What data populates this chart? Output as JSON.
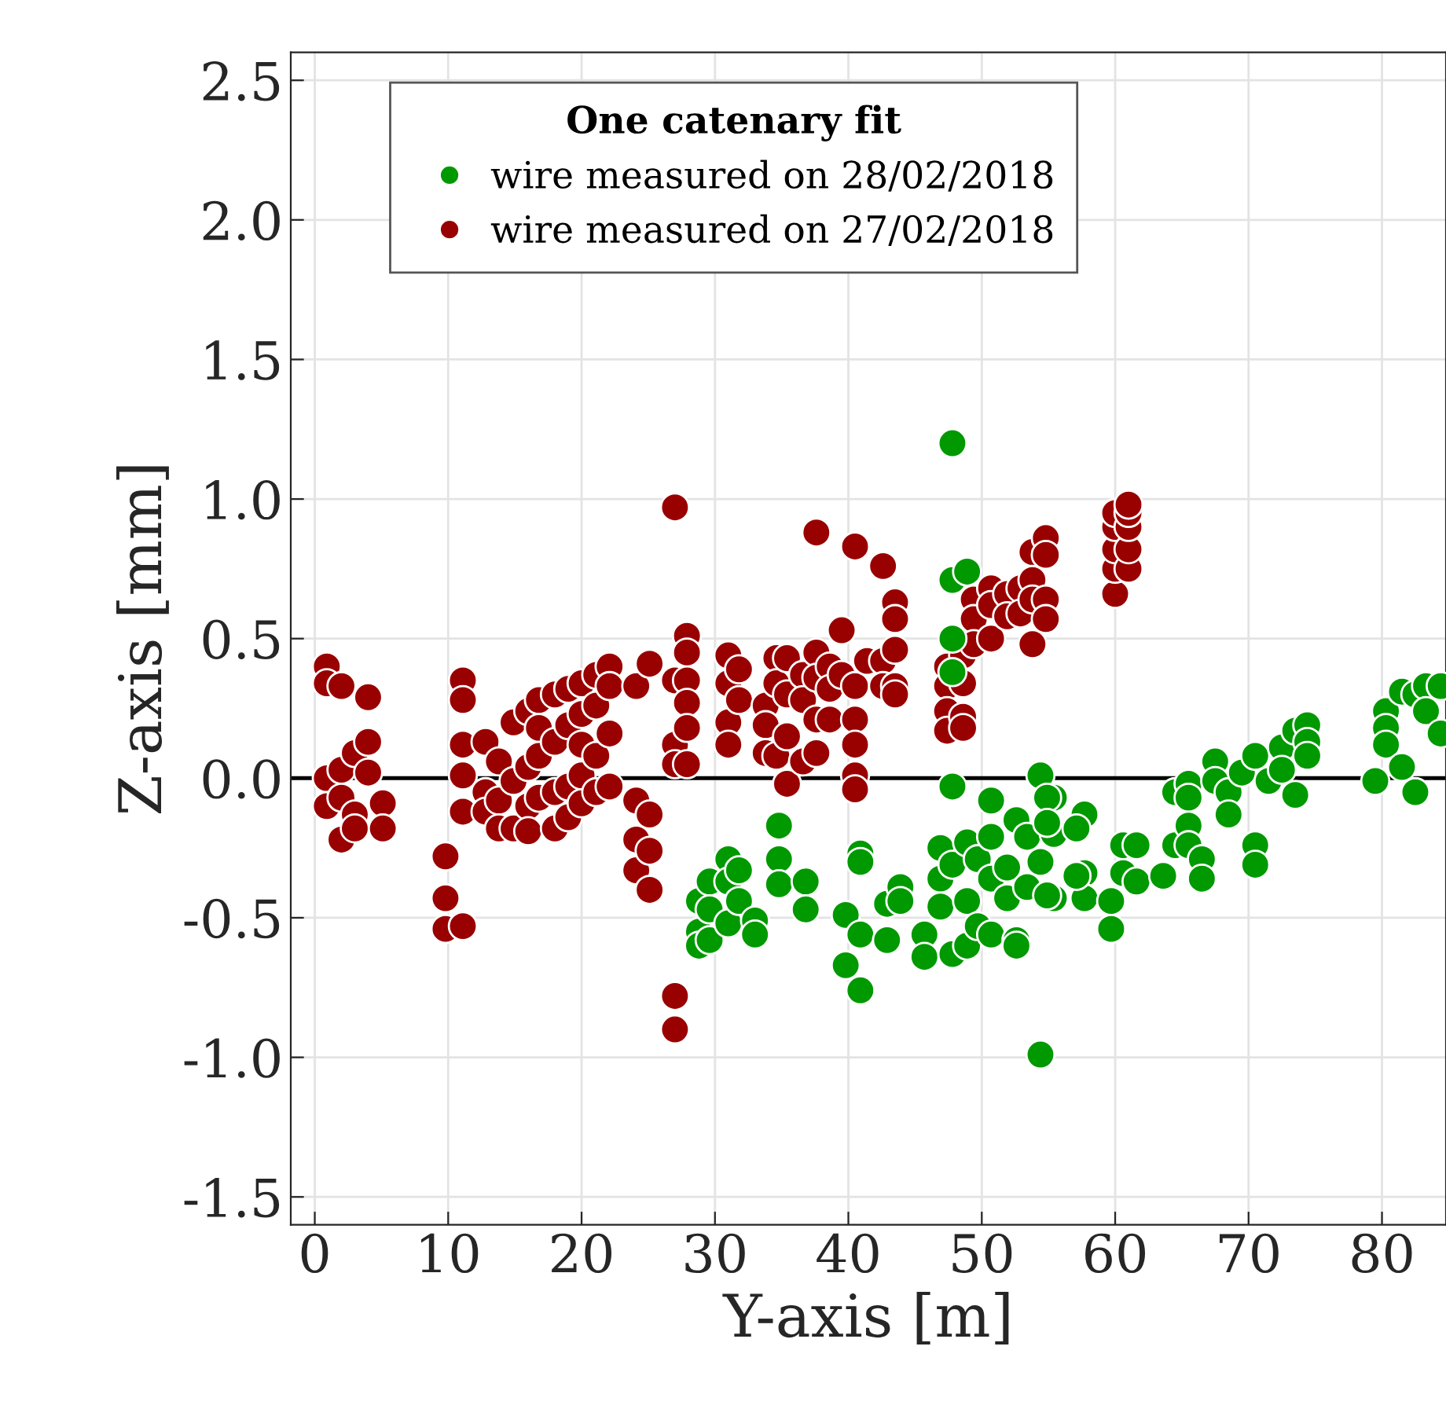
{
  "chart_data": {
    "type": "scatter",
    "xlabel": "Y-axis [m]",
    "ylabel": "Z-axis [mm]",
    "legend_title": "One catenary fit",
    "xlim": [
      -1.8,
      84.8
    ],
    "xticks": [
      0,
      10,
      20,
      30,
      40,
      50,
      60,
      70,
      80
    ],
    "ylim": [
      -1.6,
      2.6
    ],
    "yticks": [
      {
        "value": -1.5,
        "label": "-1.5"
      },
      {
        "value": -1.0,
        "label": "-1.0"
      },
      {
        "value": -0.5,
        "label": "-0.5"
      },
      {
        "value": 0.0,
        "label": "0.0"
      },
      {
        "value": 0.5,
        "label": "0.5"
      },
      {
        "value": 1.0,
        "label": "1.0"
      },
      {
        "value": 1.5,
        "label": "1.5"
      },
      {
        "value": 2.0,
        "label": "2.0"
      },
      {
        "value": 2.5,
        "label": "2.5"
      }
    ],
    "grid": true,
    "legend": "top left",
    "marker": "circle",
    "ref_lines": [
      {
        "axis": "y",
        "value": 0,
        "color": "#000000"
      }
    ],
    "series": [
      {
        "name": "wire measured on 28/02/2018",
        "color": "#009900",
        "x": [
          28.8,
          28.8,
          28.8,
          29.6,
          29.6,
          29.6,
          31.0,
          31.0,
          31.0,
          31.8,
          31.8,
          33.0,
          33.0,
          34.8,
          34.8,
          34.8,
          36.8,
          36.8,
          39.8,
          39.8,
          40.9,
          40.9,
          40.9,
          40.9,
          42.9,
          42.9,
          43.9,
          43.9,
          45.7,
          45.7,
          46.9,
          46.9,
          46.9,
          47.8,
          47.8,
          47.8,
          47.8,
          47.8,
          47.8,
          47.8,
          48.9,
          48.9,
          48.9,
          48.9,
          49.7,
          49.7,
          50.7,
          50.7,
          50.7,
          50.7,
          51.9,
          51.9,
          52.6,
          52.6,
          52.6,
          53.4,
          53.4,
          54.4,
          54.4,
          54.4,
          55.4,
          55.4,
          55.4,
          54.9,
          54.9,
          54.9,
          57.7,
          57.7,
          57.7,
          57.1,
          57.1,
          59.7,
          59.7,
          60.6,
          60.6,
          61.6,
          61.6,
          63.6,
          64.5,
          64.5,
          65.5,
          65.5,
          65.5,
          65.5,
          66.5,
          66.5,
          67.5,
          67.5,
          68.5,
          68.5,
          69.5,
          70.5,
          70.5,
          70.5,
          71.5,
          72.5,
          72.5,
          73.5,
          73.5,
          74.4,
          74.4,
          74.4,
          79.5,
          80.3,
          80.3,
          80.3,
          81.5,
          81.5,
          82.5,
          82.5,
          83.3,
          83.3,
          84.4,
          84.4
        ],
        "values": [
          -0.44,
          -0.55,
          -0.6,
          -0.37,
          -0.47,
          -0.58,
          -0.29,
          -0.37,
          -0.52,
          -0.33,
          -0.44,
          -0.51,
          -0.56,
          -0.17,
          -0.29,
          -0.38,
          -0.37,
          -0.47,
          -0.49,
          -0.67,
          -0.27,
          -0.3,
          -0.56,
          -0.76,
          -0.45,
          -0.58,
          -0.39,
          -0.44,
          -0.56,
          -0.64,
          -0.25,
          -0.36,
          -0.46,
          1.2,
          0.71,
          0.5,
          0.38,
          -0.03,
          -0.31,
          -0.63,
          0.74,
          -0.23,
          -0.44,
          -0.6,
          -0.29,
          -0.53,
          -0.08,
          -0.21,
          -0.36,
          -0.56,
          -0.32,
          -0.43,
          -0.15,
          -0.58,
          -0.6,
          -0.21,
          -0.39,
          0.01,
          -0.99,
          -0.3,
          -0.07,
          -0.2,
          -0.43,
          -0.07,
          -0.16,
          -0.42,
          -0.13,
          -0.34,
          -0.43,
          -0.18,
          -0.35,
          -0.44,
          -0.54,
          -0.24,
          -0.34,
          -0.24,
          -0.37,
          -0.35,
          -0.05,
          -0.24,
          -0.02,
          -0.07,
          -0.17,
          -0.24,
          -0.29,
          -0.36,
          0.06,
          -0.01,
          -0.05,
          -0.13,
          0.02,
          0.08,
          -0.24,
          -0.31,
          -0.01,
          0.11,
          0.03,
          0.17,
          -0.06,
          0.19,
          0.13,
          0.08,
          -0.01,
          0.24,
          0.18,
          0.12,
          0.31,
          0.04,
          0.3,
          -0.05,
          0.33,
          0.24,
          0.33,
          0.16
        ]
      },
      {
        "name": "wire measured on 27/02/2018",
        "color": "#990000",
        "x": [
          0.9,
          0.9,
          0.9,
          0.9,
          2.0,
          2.0,
          2.0,
          2.0,
          3.0,
          3.0,
          3.0,
          4.0,
          4.0,
          4.0,
          5.1,
          5.1,
          9.8,
          9.8,
          9.8,
          11.1,
          11.1,
          11.1,
          11.1,
          11.1,
          11.1,
          12.8,
          12.8,
          12.8,
          13.8,
          13.8,
          13.8,
          14.9,
          14.9,
          14.9,
          16.0,
          16.0,
          16.0,
          16.0,
          16.8,
          16.8,
          16.8,
          16.8,
          18.0,
          18.0,
          18.0,
          18.0,
          19.0,
          19.0,
          19.0,
          19.0,
          20.0,
          20.0,
          20.0,
          20.0,
          20.0,
          21.1,
          21.1,
          21.1,
          21.1,
          22.1,
          22.1,
          22.1,
          22.1,
          24.1,
          24.1,
          24.1,
          24.1,
          25.1,
          25.1,
          25.1,
          25.1,
          27.0,
          27.0,
          27.0,
          27.0,
          27.0,
          27.0,
          27.9,
          27.9,
          27.9,
          27.9,
          27.9,
          27.9,
          31.0,
          31.0,
          31.0,
          31.0,
          31.8,
          31.8,
          33.8,
          33.8,
          33.8,
          34.6,
          34.6,
          34.6,
          35.4,
          35.4,
          35.4,
          35.4,
          36.6,
          36.6,
          36.6,
          37.6,
          37.6,
          37.6,
          37.6,
          37.6,
          38.6,
          38.6,
          38.6,
          39.5,
          39.5,
          40.5,
          40.5,
          40.5,
          40.5,
          40.5,
          40.5,
          41.4,
          42.6,
          42.6,
          42.6,
          43.5,
          43.5,
          43.5,
          43.5,
          43.5,
          47.4,
          47.4,
          47.4,
          47.4,
          48.6,
          48.6,
          48.6,
          48.6,
          49.4,
          49.4,
          49.4,
          50.7,
          50.7,
          50.7,
          51.9,
          51.9,
          52.9,
          52.9,
          53.8,
          53.8,
          53.8,
          53.8,
          54.8,
          54.8,
          54.8,
          54.8,
          60.0,
          60.0,
          60.0,
          60.0,
          60.0,
          61.0,
          61.0,
          61.0,
          61.0,
          61.0
        ],
        "values": [
          0.4,
          0.34,
          0.0,
          -0.1,
          0.33,
          0.03,
          -0.07,
          -0.22,
          0.09,
          -0.13,
          -0.18,
          0.29,
          0.13,
          0.02,
          -0.09,
          -0.18,
          -0.28,
          -0.43,
          -0.54,
          0.35,
          0.28,
          0.12,
          0.01,
          -0.12,
          -0.53,
          0.13,
          -0.05,
          -0.12,
          0.06,
          -0.08,
          -0.18,
          0.2,
          -0.01,
          -0.18,
          0.24,
          0.04,
          -0.1,
          -0.19,
          0.28,
          0.18,
          0.08,
          -0.07,
          0.3,
          0.13,
          -0.05,
          -0.18,
          0.32,
          0.19,
          -0.03,
          -0.14,
          0.34,
          0.23,
          0.12,
          0.01,
          -0.09,
          0.37,
          0.26,
          0.08,
          -0.05,
          0.4,
          0.33,
          0.16,
          -0.03,
          0.33,
          -0.08,
          -0.22,
          -0.33,
          0.41,
          -0.13,
          -0.26,
          -0.4,
          0.97,
          0.35,
          0.12,
          0.05,
          -0.78,
          -0.9,
          0.51,
          0.45,
          0.35,
          0.27,
          0.18,
          0.05,
          0.44,
          0.34,
          0.2,
          0.12,
          0.39,
          0.28,
          0.26,
          0.19,
          0.09,
          0.43,
          0.34,
          0.08,
          0.43,
          0.3,
          0.15,
          -0.02,
          0.37,
          0.28,
          0.06,
          0.45,
          0.36,
          0.21,
          0.09,
          0.88,
          0.4,
          0.32,
          0.21,
          0.53,
          0.37,
          0.83,
          0.33,
          0.21,
          0.12,
          0.01,
          -0.04,
          0.42,
          0.76,
          0.42,
          0.33,
          0.63,
          0.57,
          0.46,
          0.33,
          0.3,
          0.4,
          0.33,
          0.24,
          0.17,
          0.44,
          0.34,
          0.22,
          0.18,
          0.64,
          0.57,
          0.48,
          0.68,
          0.62,
          0.5,
          0.66,
          0.58,
          0.68,
          0.59,
          0.81,
          0.71,
          0.64,
          0.48,
          0.86,
          0.8,
          0.64,
          0.57,
          0.66,
          0.75,
          0.82,
          0.9,
          0.95,
          0.75,
          0.82,
          0.9,
          0.95,
          0.98
        ]
      }
    ]
  }
}
